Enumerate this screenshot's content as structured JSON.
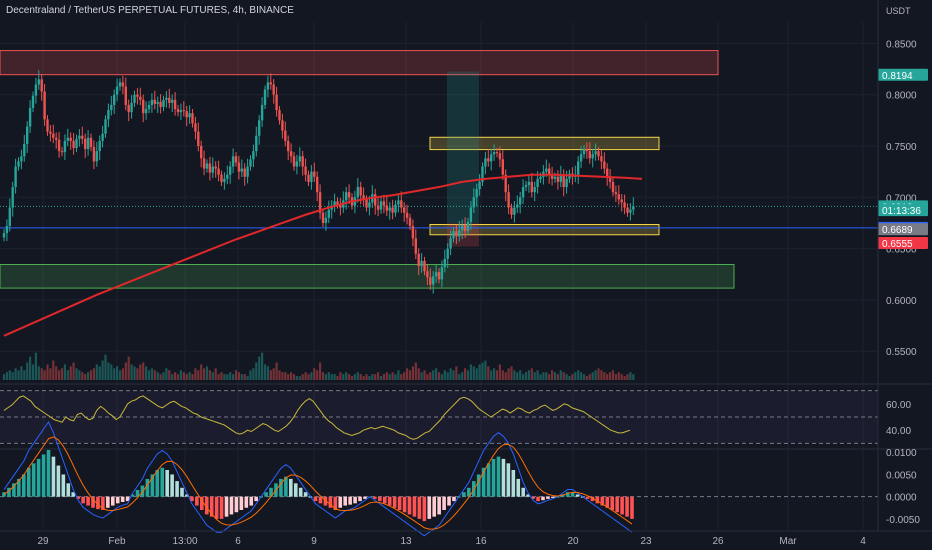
{
  "header": {
    "title": "Decentraland / TetherUS PERPETUAL FUTURES, 4h, BINANCE",
    "currency": "USDT"
  },
  "colors": {
    "background": "#131722",
    "up": "#26a69a",
    "down": "#ef5350",
    "ma": "#e0282a",
    "rsi": "#c8b93a",
    "macd": "#2962ff",
    "signal": "#ff6d00"
  },
  "chart_data": [
    {
      "type": "candlestick",
      "title": "Decentraland / TetherUS PERPETUAL FUTURES, 4h, BINANCE",
      "y_axis_label": "USDT",
      "ylim": [
        0.52,
        0.865
      ],
      "y_ticks": [
        "0.5500",
        "0.6000",
        "0.6500",
        "0.7000",
        "0.7500",
        "0.8000",
        "0.8500"
      ],
      "x_ticks": [
        "29",
        "Feb",
        "13:00",
        "6",
        "9",
        "13",
        "16",
        "20",
        "23",
        "26",
        "Mar",
        "4"
      ],
      "price_labels": [
        {
          "text": "0.8194",
          "value": 0.8194,
          "color": "#26a69a"
        },
        {
          "text": "0.6912",
          "value": 0.6912,
          "color": "#26a69a"
        },
        {
          "text": "01:13:36",
          "value": 0.6875,
          "color": "#26a69a"
        },
        {
          "text": "0.6702",
          "value": 0.6702,
          "color": "#2962ff"
        },
        {
          "text": "0.6689",
          "value": 0.6689,
          "color": "#787b86"
        },
        {
          "text": "0.6555",
          "value": 0.6555,
          "color": "#f23645"
        }
      ],
      "zones": [
        {
          "name": "supply",
          "color": "#ef5350",
          "y_top": 0.843,
          "y_bottom": 0.8195
        },
        {
          "name": "demand",
          "color": "#4caf50",
          "y_top": 0.6345,
          "y_bottom": 0.6115
        },
        {
          "name": "range-high",
          "color": "#f5d547",
          "y_top": 0.7585,
          "y_bottom": 0.7465
        },
        {
          "name": "range-low",
          "color": "#f5d547",
          "y_top": 0.6735,
          "y_bottom": 0.6635
        }
      ],
      "horizontal_line": 0.6702,
      "series_close": [
        0.665,
        0.672,
        0.69,
        0.71,
        0.73,
        0.735,
        0.74,
        0.752,
        0.769,
        0.787,
        0.799,
        0.81,
        0.815,
        0.803,
        0.776,
        0.764,
        0.762,
        0.758,
        0.756,
        0.745,
        0.744,
        0.755,
        0.758,
        0.755,
        0.748,
        0.757,
        0.76,
        0.757,
        0.747,
        0.758,
        0.749,
        0.735,
        0.745,
        0.755,
        0.762,
        0.776,
        0.785,
        0.79,
        0.8,
        0.808,
        0.812,
        0.808,
        0.79,
        0.783,
        0.792,
        0.8,
        0.798,
        0.795,
        0.782,
        0.786,
        0.79,
        0.795,
        0.791,
        0.793,
        0.788,
        0.795,
        0.797,
        0.792,
        0.795,
        0.786,
        0.783,
        0.785,
        0.784,
        0.778,
        0.782,
        0.772,
        0.764,
        0.75,
        0.738,
        0.728,
        0.733,
        0.724,
        0.73,
        0.728,
        0.722,
        0.715,
        0.718,
        0.722,
        0.73,
        0.74,
        0.734,
        0.725,
        0.728,
        0.72,
        0.73,
        0.737,
        0.745,
        0.76,
        0.775,
        0.79,
        0.805,
        0.812,
        0.81,
        0.8,
        0.785,
        0.775,
        0.765,
        0.755,
        0.745,
        0.74,
        0.73,
        0.735,
        0.74,
        0.73,
        0.722,
        0.715,
        0.725,
        0.72,
        0.705,
        0.685,
        0.675,
        0.68,
        0.688,
        0.692,
        0.696,
        0.693,
        0.69,
        0.697,
        0.705,
        0.7,
        0.692,
        0.7,
        0.71,
        0.702,
        0.698,
        0.69,
        0.695,
        0.703,
        0.692,
        0.688,
        0.696,
        0.692,
        0.687,
        0.69,
        0.685,
        0.693,
        0.697,
        0.69,
        0.685,
        0.68,
        0.672,
        0.66,
        0.645,
        0.633,
        0.638,
        0.628,
        0.622,
        0.615,
        0.623,
        0.627,
        0.62,
        0.632,
        0.64,
        0.65,
        0.66,
        0.667,
        0.662,
        0.668,
        0.673,
        0.667,
        0.676,
        0.69,
        0.7,
        0.708,
        0.715,
        0.73,
        0.738,
        0.735,
        0.742,
        0.744,
        0.743,
        0.737,
        0.722,
        0.705,
        0.69,
        0.683,
        0.69,
        0.693,
        0.7,
        0.71,
        0.712,
        0.715,
        0.705,
        0.71,
        0.718,
        0.72,
        0.725,
        0.728,
        0.722,
        0.718,
        0.72,
        0.715,
        0.722,
        0.71,
        0.718,
        0.723,
        0.72,
        0.722,
        0.735,
        0.742,
        0.747,
        0.745,
        0.738,
        0.742,
        0.745,
        0.74,
        0.735,
        0.728,
        0.72,
        0.715,
        0.705,
        0.703,
        0.698,
        0.695,
        0.69,
        0.685,
        0.688,
        0.6912
      ],
      "ma_points": [
        [
          0,
          0.565
        ],
        [
          8,
          0.575
        ],
        [
          16,
          0.585
        ],
        [
          24,
          0.595
        ],
        [
          32,
          0.605
        ],
        [
          40,
          0.614
        ],
        [
          48,
          0.623
        ],
        [
          56,
          0.632
        ],
        [
          64,
          0.641
        ],
        [
          72,
          0.65
        ],
        [
          80,
          0.659
        ],
        [
          88,
          0.667
        ],
        [
          96,
          0.675
        ],
        [
          104,
          0.683
        ],
        [
          112,
          0.69
        ],
        [
          120,
          0.696
        ],
        [
          128,
          0.7
        ],
        [
          134,
          0.702
        ],
        [
          142,
          0.706
        ],
        [
          150,
          0.71
        ],
        [
          158,
          0.715
        ],
        [
          166,
          0.718
        ],
        [
          174,
          0.72
        ],
        [
          182,
          0.722
        ],
        [
          190,
          0.722
        ],
        [
          198,
          0.721
        ],
        [
          206,
          0.72
        ],
        [
          214,
          0.719
        ],
        [
          220,
          0.718
        ]
      ]
    },
    {
      "type": "bar",
      "name": "Volume",
      "values": [
        3,
        4,
        5,
        4,
        6,
        5,
        7,
        5,
        9,
        12,
        8,
        14,
        7,
        6,
        5,
        8,
        6,
        10,
        7,
        5,
        6,
        8,
        5,
        7,
        9,
        6,
        5,
        4,
        3,
        4,
        5,
        6,
        8,
        7,
        10,
        13,
        9,
        8,
        6,
        7,
        5,
        6,
        9,
        12,
        8,
        7,
        6,
        8,
        9,
        7,
        5,
        6,
        5,
        4,
        3,
        4,
        6,
        5,
        3,
        4,
        3,
        5,
        4,
        3,
        4,
        3,
        6,
        5,
        8,
        6,
        7,
        5,
        4,
        6,
        3,
        4,
        3,
        3,
        4,
        3,
        5,
        4,
        3,
        3,
        2,
        5,
        6,
        9,
        12,
        14,
        8,
        7,
        5,
        6,
        9,
        5,
        4,
        4,
        3,
        4,
        3,
        2,
        2,
        3,
        4,
        3,
        4,
        6,
        5,
        9,
        4,
        3,
        4,
        3,
        3,
        2,
        4,
        3,
        4,
        3,
        2,
        3,
        4,
        3,
        2,
        3,
        2,
        3,
        3,
        4,
        2,
        3,
        4,
        3,
        4,
        3,
        5,
        3,
        4,
        6,
        5,
        7,
        9,
        6,
        4,
        5,
        3,
        4,
        5,
        6,
        4,
        3,
        5,
        4,
        6,
        5,
        7,
        3,
        4,
        6,
        5,
        8,
        7,
        6,
        8,
        9,
        10,
        7,
        5,
        6,
        5,
        8,
        5,
        4,
        6,
        7,
        5,
        4,
        5,
        3,
        4,
        5,
        6,
        4,
        5,
        3,
        4,
        4,
        3,
        5,
        4,
        3,
        5,
        4,
        3,
        2,
        3,
        4,
        5,
        4,
        3,
        2,
        3,
        4,
        5,
        6,
        5,
        4,
        3,
        4,
        5,
        3,
        4,
        3,
        2,
        3,
        4,
        3,
        2,
        3
      ]
    },
    {
      "type": "line",
      "name": "RSI",
      "y_ticks": [
        "60.00",
        "40.00"
      ],
      "ylim": [
        28,
        72
      ],
      "values": [
        55,
        57,
        59,
        62,
        65,
        66,
        64,
        62,
        58,
        56,
        54,
        52,
        50,
        48,
        47,
        46,
        50,
        48,
        47,
        52,
        53,
        50,
        48,
        49,
        55,
        58,
        56,
        53,
        51,
        48,
        50,
        55,
        60,
        62,
        63,
        65,
        66,
        64,
        62,
        60,
        58,
        57,
        59,
        61,
        62,
        60,
        58,
        57,
        55,
        53,
        52,
        50,
        49,
        48,
        47,
        46,
        45,
        44,
        42,
        40,
        38,
        37,
        38,
        40,
        39,
        41,
        43,
        45,
        44,
        42,
        40,
        39,
        41,
        43,
        46,
        50,
        55,
        59,
        62,
        64,
        62,
        58,
        54,
        50,
        47,
        45,
        42,
        40,
        38,
        37,
        36,
        37,
        38,
        40,
        41,
        42,
        41,
        42,
        43,
        42,
        41,
        40,
        38,
        37,
        36,
        34,
        33,
        34,
        36,
        38,
        39,
        42,
        45,
        48,
        52,
        55,
        58,
        61,
        64,
        65,
        64,
        62,
        59,
        56,
        54,
        52,
        50,
        52,
        54,
        56,
        55,
        53,
        55,
        57,
        56,
        54,
        53,
        55,
        56,
        58,
        59,
        57,
        55,
        56,
        58,
        60,
        59,
        57,
        56,
        55,
        54,
        52,
        50,
        48,
        46,
        44,
        42,
        40,
        39,
        38,
        38,
        39,
        40
      ]
    },
    {
      "type": "bar",
      "name": "MACD",
      "y_ticks": [
        "0.0100",
        "0.0050",
        "0.0000",
        "-0.0050"
      ],
      "ylim": [
        -0.0075,
        0.0105
      ],
      "values": [
        0.001,
        0.002,
        0.003,
        0.004,
        0.005,
        0.0065,
        0.0075,
        0.0085,
        0.0095,
        0.0105,
        0.009,
        0.007,
        0.005,
        0.003,
        0.001,
        -0.0005,
        -0.0015,
        -0.002,
        -0.0025,
        -0.0028,
        -0.003,
        -0.0025,
        -0.002,
        -0.0015,
        -0.0012,
        -0.001,
        0.0005,
        0.0015,
        0.0025,
        0.004,
        0.005,
        0.006,
        0.0065,
        0.006,
        0.005,
        0.0035,
        0.002,
        0.0005,
        -0.001,
        -0.002,
        -0.003,
        -0.004,
        -0.0045,
        -0.005,
        -0.005,
        -0.0045,
        -0.004,
        -0.0035,
        -0.003,
        -0.0025,
        -0.002,
        -0.001,
        0.0,
        0.001,
        0.002,
        0.003,
        0.004,
        0.0045,
        0.004,
        0.003,
        0.002,
        0.001,
        0.0,
        -0.001,
        -0.0015,
        -0.002,
        -0.0025,
        -0.003,
        -0.0025,
        -0.002,
        -0.0018,
        -0.0015,
        -0.001,
        -0.0005,
        0.0,
        -0.0005,
        -0.001,
        -0.0015,
        -0.002,
        -0.0025,
        -0.003,
        -0.0035,
        -0.004,
        -0.0045,
        -0.005,
        -0.0055,
        -0.005,
        -0.0045,
        -0.004,
        -0.003,
        -0.002,
        -0.001,
        0.0,
        0.001,
        0.002,
        0.0035,
        0.005,
        0.0065,
        0.0075,
        0.0085,
        0.009,
        0.0085,
        0.0075,
        0.006,
        0.004,
        0.002,
        0.0005,
        -0.0005,
        -0.001,
        -0.0008,
        -0.0005,
        -0.0003,
        0.0,
        0.0005,
        0.001,
        0.001,
        0.0005,
        0.0,
        -0.0005,
        -0.001,
        -0.0015,
        -0.002,
        -0.0025,
        -0.003,
        -0.0035,
        -0.004,
        -0.0045,
        -0.005
      ]
    }
  ]
}
